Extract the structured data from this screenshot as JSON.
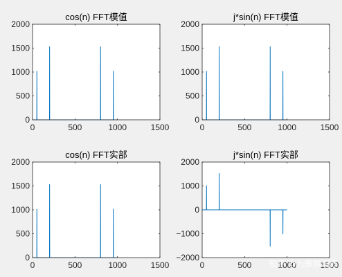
{
  "chart_data": [
    {
      "type": "line",
      "title": "cos(n) FFT模值",
      "xlim": [
        0,
        1500
      ],
      "ylim": [
        0,
        2000
      ],
      "xticks": [
        0,
        500,
        1000,
        1500
      ],
      "yticks": [
        0,
        500,
        1000,
        1500,
        2000
      ],
      "n_points": 1000,
      "x": [
        1,
        50,
        51,
        52,
        200,
        201,
        202,
        800,
        801,
        802,
        950,
        951,
        952,
        1000
      ],
      "y": [
        0,
        0,
        1020,
        0,
        0,
        1535,
        0,
        0,
        1535,
        0,
        0,
        1020,
        0,
        0
      ],
      "color": "#0072bd"
    },
    {
      "type": "line",
      "title": "j*sin(n) FFT模值",
      "xlim": [
        0,
        1500
      ],
      "ylim": [
        0,
        2000
      ],
      "xticks": [
        0,
        500,
        1000,
        1500
      ],
      "yticks": [
        0,
        500,
        1000,
        1500,
        2000
      ],
      "n_points": 1000,
      "x": [
        1,
        50,
        51,
        52,
        200,
        201,
        202,
        800,
        801,
        802,
        950,
        951,
        952,
        1000
      ],
      "y": [
        0,
        0,
        1020,
        0,
        0,
        1535,
        0,
        0,
        1535,
        0,
        0,
        1020,
        0,
        0
      ],
      "color": "#0072bd"
    },
    {
      "type": "line",
      "title": "cos(n) FFT实部",
      "xlim": [
        0,
        1500
      ],
      "ylim": [
        0,
        2000
      ],
      "xticks": [
        0,
        500,
        1000,
        1500
      ],
      "yticks": [
        0,
        500,
        1000,
        1500,
        2000
      ],
      "n_points": 1000,
      "x": [
        1,
        50,
        51,
        52,
        200,
        201,
        202,
        800,
        801,
        802,
        950,
        951,
        952,
        1000
      ],
      "y": [
        0,
        0,
        1020,
        0,
        0,
        1535,
        0,
        0,
        1535,
        0,
        0,
        1020,
        0,
        0
      ],
      "color": "#0072bd"
    },
    {
      "type": "line",
      "title": "j*sin(n) FFT实部",
      "xlim": [
        0,
        1500
      ],
      "ylim": [
        -2000,
        2000
      ],
      "xticks": [
        0,
        500,
        1000,
        1500
      ],
      "yticks": [
        -2000,
        -1000,
        0,
        1000,
        2000
      ],
      "n_points": 1000,
      "x": [
        1,
        50,
        51,
        52,
        200,
        201,
        202,
        800,
        801,
        802,
        950,
        951,
        952,
        1000
      ],
      "y": [
        0,
        0,
        1020,
        0,
        0,
        1535,
        0,
        0,
        -1535,
        0,
        0,
        -1020,
        0,
        0
      ],
      "color": "#0072bd"
    }
  ],
  "watermark": "知乎 @九歌振洞庭"
}
